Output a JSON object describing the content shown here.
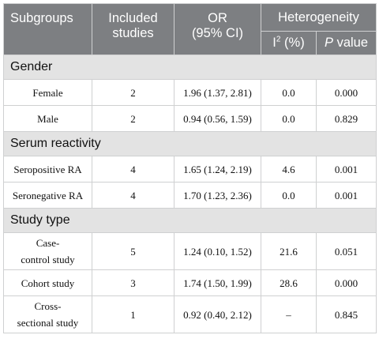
{
  "header": {
    "subgroups": "Subgroups",
    "included_studies_line1": "Included",
    "included_studies_line2": "studies",
    "or_line1": "OR",
    "or_line2": "(95% CI)",
    "heterogeneity": "Heterogeneity",
    "i2_base": "I",
    "i2_sup": "2",
    "i2_unit": " (%)",
    "p_italic": "P",
    "p_rest": " value"
  },
  "sections": [
    {
      "title": "Gender",
      "rows": [
        {
          "subgroup": [
            "Female"
          ],
          "studies": "2",
          "or": "1.96 (1.37, 2.81)",
          "i2": "0.0",
          "p": "0.000"
        },
        {
          "subgroup": [
            "Male"
          ],
          "studies": "2",
          "or": "0.94 (0.56, 1.59)",
          "i2": "0.0",
          "p": "0.829"
        }
      ]
    },
    {
      "title": "Serum reactivity",
      "rows": [
        {
          "subgroup": [
            "Seropositive RA"
          ],
          "studies": "4",
          "or": "1.65 (1.24, 2.19)",
          "i2": "4.6",
          "p": "0.001"
        },
        {
          "subgroup": [
            "Seronegative RA"
          ],
          "studies": "4",
          "or": "1.70 (1.23, 2.36)",
          "i2": "0.0",
          "p": "0.001"
        }
      ]
    },
    {
      "title": "Study type",
      "rows": [
        {
          "subgroup": [
            "Case-",
            "control study"
          ],
          "studies": "5",
          "or": "1.24 (0.10, 1.52)",
          "i2": "21.6",
          "p": "0.051"
        },
        {
          "subgroup": [
            "Cohort study"
          ],
          "studies": "3",
          "or": "1.74 (1.50, 1.99)",
          "i2": "28.6",
          "p": "0.000"
        },
        {
          "subgroup": [
            "Cross-",
            "sectional study"
          ],
          "studies": "1",
          "or": "0.92 (0.40, 2.12)",
          "i2": "–",
          "p": "0.845"
        }
      ]
    }
  ]
}
